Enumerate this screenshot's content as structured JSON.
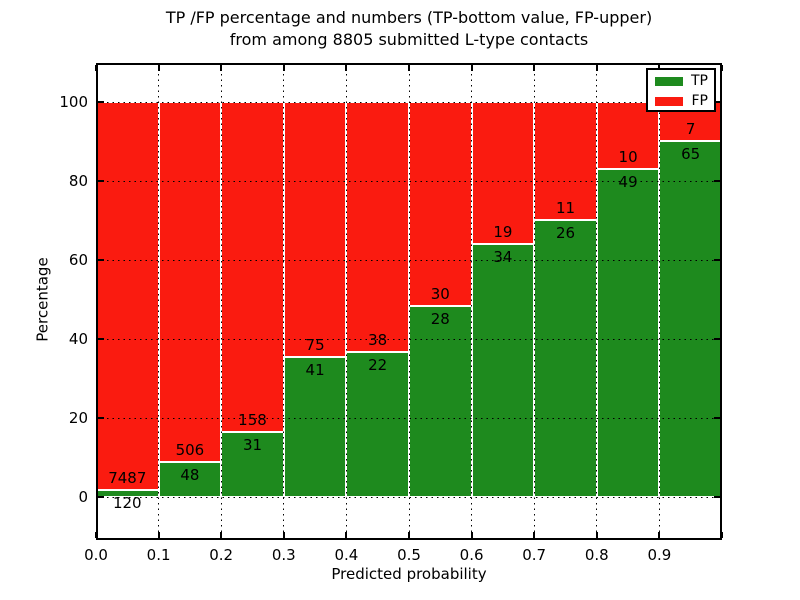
{
  "chart_data": {
    "type": "bar",
    "stacked": true,
    "normalized_to": 100,
    "title": "TP /FP percentage and numbers (TP-bottom value, FP-upper)\nfrom among 8805 submitted L-type contacts",
    "title_lines": [
      "TP /FP percentage and numbers (TP-bottom value, FP-upper)",
      "from among 8805 submitted L-type contacts"
    ],
    "xlabel": "Predicted probability",
    "ylabel": "Percentage",
    "total_contacts": 8805,
    "bin_edges": [
      0.0,
      0.1,
      0.2,
      0.3,
      0.4,
      0.5,
      0.6,
      0.7,
      0.8,
      0.9,
      1.0
    ],
    "categories": [
      "0.0-0.1",
      "0.1-0.2",
      "0.2-0.3",
      "0.3-0.4",
      "0.4-0.5",
      "0.5-0.6",
      "0.6-0.7",
      "0.7-0.8",
      "0.8-0.9",
      "0.9-1.0"
    ],
    "series": [
      {
        "name": "TP",
        "color": "#1e8a1e",
        "counts": [
          120,
          48,
          31,
          41,
          22,
          28,
          34,
          26,
          49,
          65
        ]
      },
      {
        "name": "FP",
        "color": "#fa1b10",
        "counts": [
          7487,
          506,
          158,
          75,
          38,
          30,
          19,
          11,
          10,
          7
        ]
      }
    ],
    "tp_percent": [
      1.58,
      8.66,
      16.4,
      35.34,
      36.67,
      48.28,
      64.15,
      70.27,
      83.05,
      90.28
    ],
    "fp_percent": [
      98.42,
      91.34,
      83.6,
      64.66,
      63.33,
      51.72,
      35.85,
      29.73,
      16.95,
      9.72
    ],
    "x_tick_labels": [
      "0.0",
      "0.1",
      "0.2",
      "0.3",
      "0.4",
      "0.5",
      "0.6",
      "0.7",
      "0.8",
      "0.9"
    ],
    "y_tick_labels": [
      "0",
      "20",
      "40",
      "60",
      "80",
      "100"
    ],
    "y_tick_values": [
      0,
      20,
      40,
      60,
      80,
      100
    ],
    "xlim": [
      0.0,
      1.0
    ],
    "ylim": [
      -11,
      110
    ],
    "grid": "dotted black, drawn above bars",
    "bar_edge_color": "#ffffff",
    "legend_position": "upper right",
    "legend_entries": [
      "TP",
      "FP"
    ]
  }
}
